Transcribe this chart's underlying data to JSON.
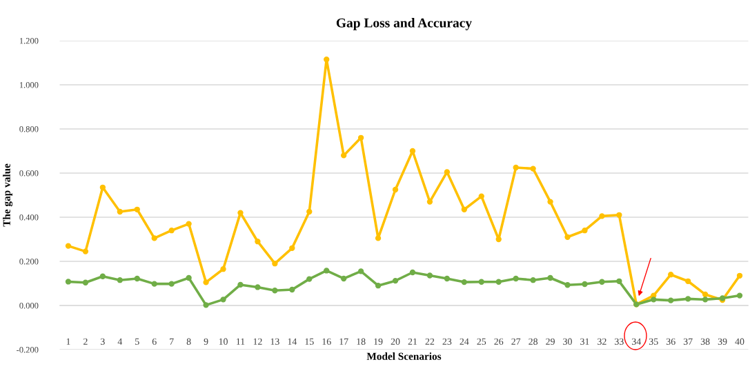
{
  "chart_data": {
    "type": "line",
    "title": "Gap Loss and Accuracy",
    "xlabel": "Model Scenarios",
    "ylabel": "The gap value",
    "categories": [
      "1",
      "2",
      "3",
      "4",
      "5",
      "6",
      "7",
      "8",
      "9",
      "10",
      "11",
      "12",
      "13",
      "14",
      "15",
      "16",
      "17",
      "18",
      "19",
      "20",
      "21",
      "22",
      "23",
      "24",
      "25",
      "26",
      "27",
      "28",
      "29",
      "30",
      "31",
      "32",
      "33",
      "34",
      "35",
      "36",
      "37",
      "38",
      "39",
      "40"
    ],
    "series": [
      {
        "color": "#ffc000",
        "values": [
          0.27,
          0.245,
          0.535,
          0.425,
          0.435,
          0.305,
          0.34,
          0.37,
          0.105,
          0.165,
          0.42,
          0.29,
          0.19,
          0.26,
          0.425,
          1.115,
          0.68,
          0.76,
          0.305,
          0.525,
          0.7,
          0.47,
          0.605,
          0.435,
          0.495,
          0.3,
          0.625,
          0.62,
          0.47,
          0.31,
          0.34,
          0.405,
          0.41,
          0.005,
          0.045,
          0.14,
          0.11,
          0.05,
          0.025,
          0.135
        ]
      },
      {
        "color": "#70ad47",
        "values": [
          0.108,
          0.104,
          0.132,
          0.115,
          0.122,
          0.098,
          0.098,
          0.125,
          0.002,
          0.027,
          0.094,
          0.083,
          0.068,
          0.072,
          0.12,
          0.158,
          0.122,
          0.155,
          0.09,
          0.112,
          0.15,
          0.136,
          0.122,
          0.106,
          0.107,
          0.107,
          0.122,
          0.115,
          0.125,
          0.093,
          0.097,
          0.107,
          0.11,
          0.005,
          0.027,
          0.023,
          0.03,
          0.027,
          0.033,
          0.045
        ]
      }
    ],
    "ylim": [
      -0.2,
      1.2
    ],
    "yticks": [
      {
        "value": -0.2,
        "label": "-0.200"
      },
      {
        "value": 0,
        "label": "0.000"
      },
      {
        "value": 0.2,
        "label": "0.200"
      },
      {
        "value": 0.4,
        "label": "0.400"
      },
      {
        "value": 0.6,
        "label": "0.600"
      },
      {
        "value": 0.8,
        "label": "0.800"
      },
      {
        "value": 1.0,
        "label": "1.000"
      },
      {
        "value": 1.2,
        "label": "1.200"
      }
    ],
    "grid": "y",
    "marker": "circle",
    "line_style": "solid"
  }
}
